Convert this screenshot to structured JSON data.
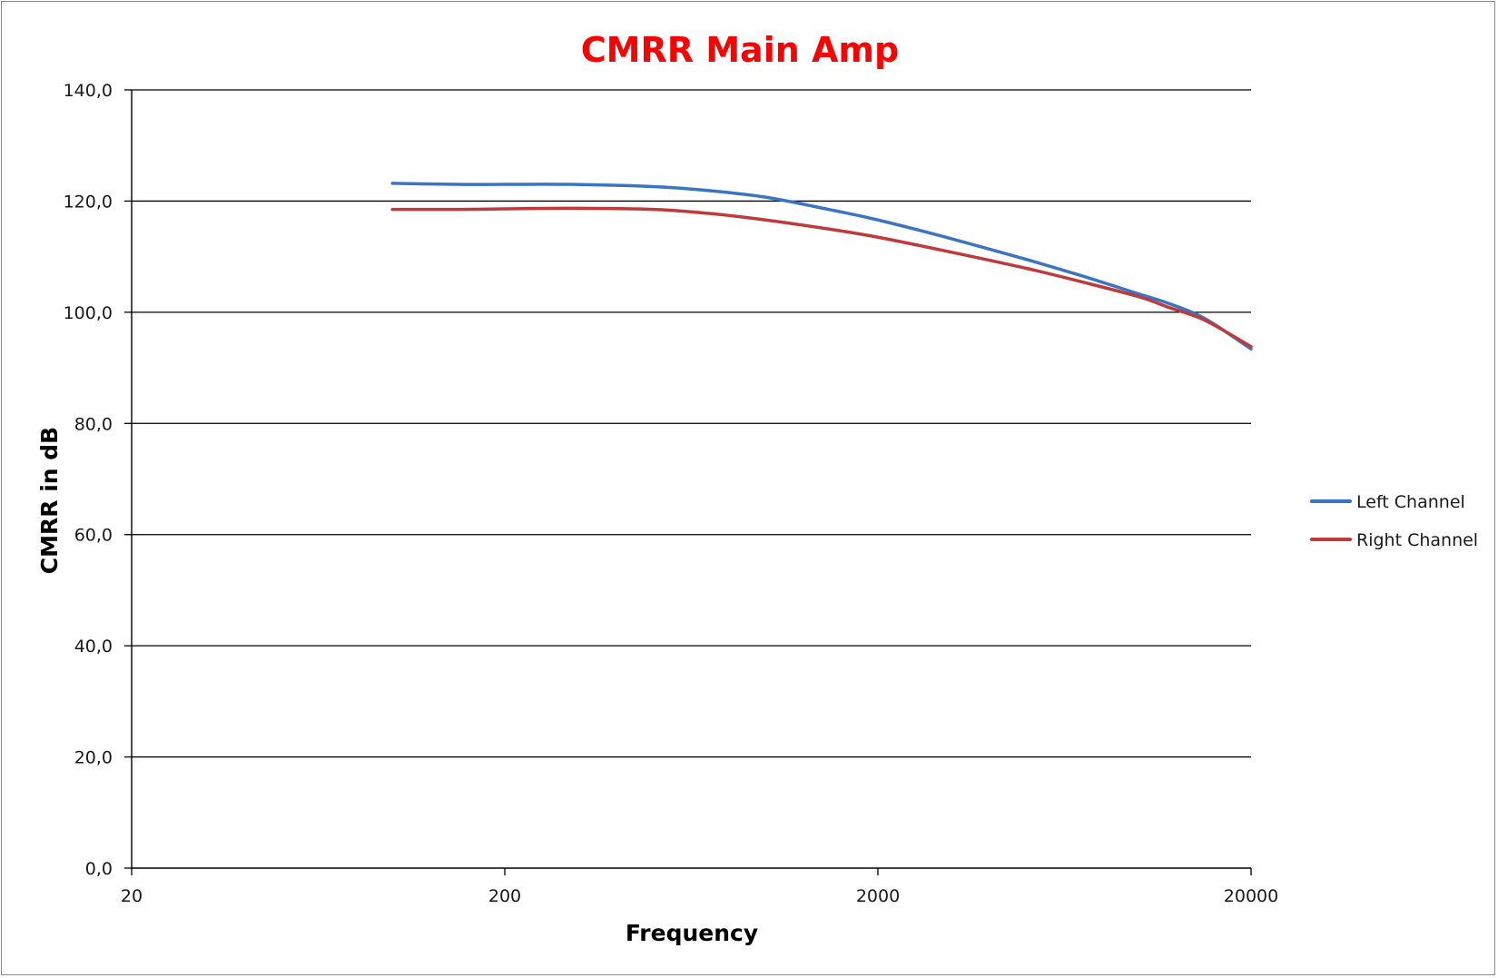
{
  "chart_data": {
    "type": "line",
    "title": "CMRR Main Amp",
    "title_color": "#ff0000",
    "xlabel": "Frequency",
    "ylabel": "CMRR in dB",
    "x_scale": "log",
    "xlim": [
      20,
      20000
    ],
    "ylim": [
      0,
      140
    ],
    "x_ticks": [
      "20",
      "200",
      "2000",
      "20000"
    ],
    "y_ticks": [
      "0,0",
      "20,0",
      "40,0",
      "60,0",
      "80,0",
      "100,0",
      "120,0",
      "140,0"
    ],
    "grid": "horizontal",
    "legend_position": "right",
    "series": [
      {
        "name": "Left Channel",
        "color": "#3a75c4",
        "x": [
          100,
          150,
          200,
          300,
          500,
          700,
          1000,
          1500,
          2000,
          3000,
          5000,
          7000,
          10000,
          12000,
          15000,
          20000
        ],
        "y": [
          123.2,
          123.0,
          123.0,
          123.0,
          122.6,
          121.9,
          120.7,
          118.4,
          116.6,
          113.6,
          109.5,
          106.6,
          103.3,
          101.6,
          98.9,
          93.4
        ]
      },
      {
        "name": "Right Channel",
        "color": "#c0393b",
        "x": [
          100,
          150,
          200,
          300,
          500,
          700,
          1000,
          1500,
          2000,
          3000,
          5000,
          7000,
          10000,
          12000,
          15000,
          20000
        ],
        "y": [
          118.5,
          118.5,
          118.6,
          118.7,
          118.5,
          117.8,
          116.6,
          114.9,
          113.5,
          111.1,
          107.9,
          105.5,
          102.8,
          100.9,
          98.6,
          93.8
        ]
      }
    ]
  }
}
